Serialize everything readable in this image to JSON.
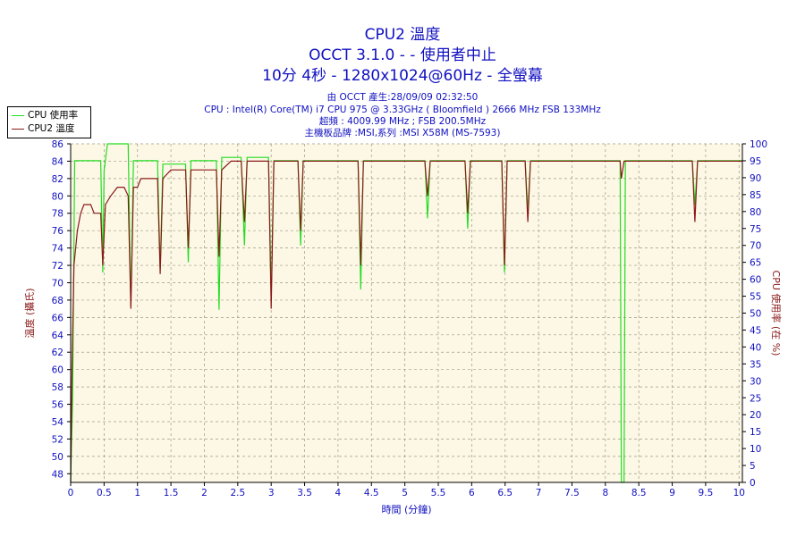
{
  "title": {
    "line1": "CPU2 溫度",
    "line2": "OCCT 3.1.0 -  - 使用者中止",
    "line3": "10分 4秒 - 1280x1024@60Hz - 全螢幕"
  },
  "info": {
    "line1": "由 OCCT 產生:28/09/09 02:32:50",
    "line2": "CPU : Intel(R) Core(TM) i7 CPU 975 @ 3.33GHz ( Bloomfield ) 2666 MHz FSB 133MHz",
    "line3": "超頻 : 4009.99 MHz ; FSB 200.5MHz",
    "line4": "主機板品牌 :MSI,系列 :MSI X58M (MS-7593)"
  },
  "colors": {
    "cpu_usage": "#22dd22",
    "cpu2_temp": "#8b1a1a",
    "plot_bg": "#fdf8e6",
    "grid": "#9a9a80",
    "text": "#1010c0",
    "axis_label_left": "#8b1a1a",
    "axis_label_right": "#8b1a1a"
  },
  "chart_data": {
    "type": "line",
    "title": "CPU2 溫度",
    "xlabel": "時間 (分鐘)",
    "ylabel_left": "溫度 (攝氏)",
    "ylabel_right": "CPU 使用率 (在 %)",
    "xlim": [
      0,
      10.05
    ],
    "ylim_left": [
      47,
      86
    ],
    "ylim_right": [
      0,
      100
    ],
    "x_ticks": [
      "0",
      "0.5",
      "1",
      "1.5",
      "2",
      "2.5",
      "3",
      "3.5",
      "4",
      "4.5",
      "5",
      "5.5",
      "6",
      "6.5",
      "7",
      "7.5",
      "8",
      "8.5",
      "9",
      "9.5",
      "10"
    ],
    "y_left_ticks": [
      "48",
      "50",
      "52",
      "54",
      "56",
      "58",
      "60",
      "62",
      "64",
      "66",
      "68",
      "70",
      "72",
      "74",
      "76",
      "78",
      "80",
      "82",
      "84",
      "86"
    ],
    "y_right_ticks": [
      "0",
      "5",
      "10",
      "15",
      "20",
      "25",
      "30",
      "35",
      "40",
      "45",
      "50",
      "55",
      "60",
      "65",
      "70",
      "75",
      "80",
      "85",
      "90",
      "95",
      "100"
    ],
    "grid": true,
    "legend_position": "top-left",
    "series": [
      {
        "name": "CPU 使用率",
        "axis": "right",
        "points": [
          [
            0,
            0
          ],
          [
            0.03,
            25
          ],
          [
            0.06,
            95
          ],
          [
            0.45,
            95
          ],
          [
            0.48,
            62
          ],
          [
            0.5,
            92
          ],
          [
            0.55,
            100
          ],
          [
            0.86,
            100
          ],
          [
            0.9,
            52
          ],
          [
            0.94,
            95
          ],
          [
            1.3,
            95
          ],
          [
            1.34,
            63
          ],
          [
            1.38,
            94
          ],
          [
            1.72,
            94
          ],
          [
            1.76,
            65
          ],
          [
            1.8,
            95
          ],
          [
            2.18,
            95
          ],
          [
            2.22,
            51
          ],
          [
            2.26,
            96
          ],
          [
            2.55,
            96
          ],
          [
            2.6,
            70
          ],
          [
            2.64,
            96
          ],
          [
            2.96,
            96
          ],
          [
            3.0,
            55
          ],
          [
            3.04,
            95
          ],
          [
            3.4,
            95
          ],
          [
            3.44,
            70
          ],
          [
            3.48,
            95
          ],
          [
            4.3,
            95
          ],
          [
            4.34,
            57
          ],
          [
            4.38,
            95
          ],
          [
            5.3,
            95
          ],
          [
            5.34,
            78
          ],
          [
            5.38,
            95
          ],
          [
            5.9,
            95
          ],
          [
            5.94,
            75
          ],
          [
            5.98,
            95
          ],
          [
            6.45,
            95
          ],
          [
            6.49,
            62
          ],
          [
            6.53,
            95
          ],
          [
            6.8,
            95
          ],
          [
            6.84,
            80
          ],
          [
            6.88,
            95
          ],
          [
            8.22,
            95
          ],
          [
            8.24,
            0
          ],
          [
            8.28,
            0
          ],
          [
            8.3,
            95
          ],
          [
            9.3,
            95
          ],
          [
            9.34,
            82
          ],
          [
            9.38,
            95
          ],
          [
            10.05,
            95
          ]
        ]
      },
      {
        "name": "CPU2 溫度",
        "axis": "left",
        "points": [
          [
            0,
            47
          ],
          [
            0.02,
            60
          ],
          [
            0.05,
            72
          ],
          [
            0.1,
            76
          ],
          [
            0.15,
            78
          ],
          [
            0.2,
            79
          ],
          [
            0.3,
            79
          ],
          [
            0.35,
            78
          ],
          [
            0.45,
            78
          ],
          [
            0.48,
            72
          ],
          [
            0.52,
            79
          ],
          [
            0.6,
            80
          ],
          [
            0.7,
            81
          ],
          [
            0.8,
            81
          ],
          [
            0.86,
            80
          ],
          [
            0.9,
            67
          ],
          [
            0.94,
            81
          ],
          [
            1.0,
            81
          ],
          [
            1.05,
            82
          ],
          [
            1.3,
            82
          ],
          [
            1.34,
            71
          ],
          [
            1.38,
            82
          ],
          [
            1.5,
            83
          ],
          [
            1.72,
            83
          ],
          [
            1.76,
            74
          ],
          [
            1.8,
            83
          ],
          [
            2.18,
            83
          ],
          [
            2.22,
            73
          ],
          [
            2.26,
            83
          ],
          [
            2.4,
            84
          ],
          [
            2.55,
            84
          ],
          [
            2.6,
            77
          ],
          [
            2.64,
            84
          ],
          [
            2.96,
            84
          ],
          [
            3.0,
            67
          ],
          [
            3.04,
            84
          ],
          [
            3.4,
            84
          ],
          [
            3.44,
            76
          ],
          [
            3.48,
            84
          ],
          [
            4.0,
            84
          ],
          [
            4.3,
            84
          ],
          [
            4.34,
            72
          ],
          [
            4.38,
            84
          ],
          [
            5.3,
            84
          ],
          [
            5.34,
            80
          ],
          [
            5.38,
            84
          ],
          [
            5.9,
            84
          ],
          [
            5.94,
            78
          ],
          [
            5.98,
            84
          ],
          [
            6.45,
            84
          ],
          [
            6.49,
            72
          ],
          [
            6.53,
            84
          ],
          [
            6.8,
            84
          ],
          [
            6.84,
            77
          ],
          [
            6.88,
            84
          ],
          [
            8.22,
            84
          ],
          [
            8.24,
            82
          ],
          [
            8.28,
            84
          ],
          [
            9.3,
            84
          ],
          [
            9.34,
            77
          ],
          [
            9.38,
            84
          ],
          [
            10.05,
            84
          ]
        ]
      }
    ]
  }
}
